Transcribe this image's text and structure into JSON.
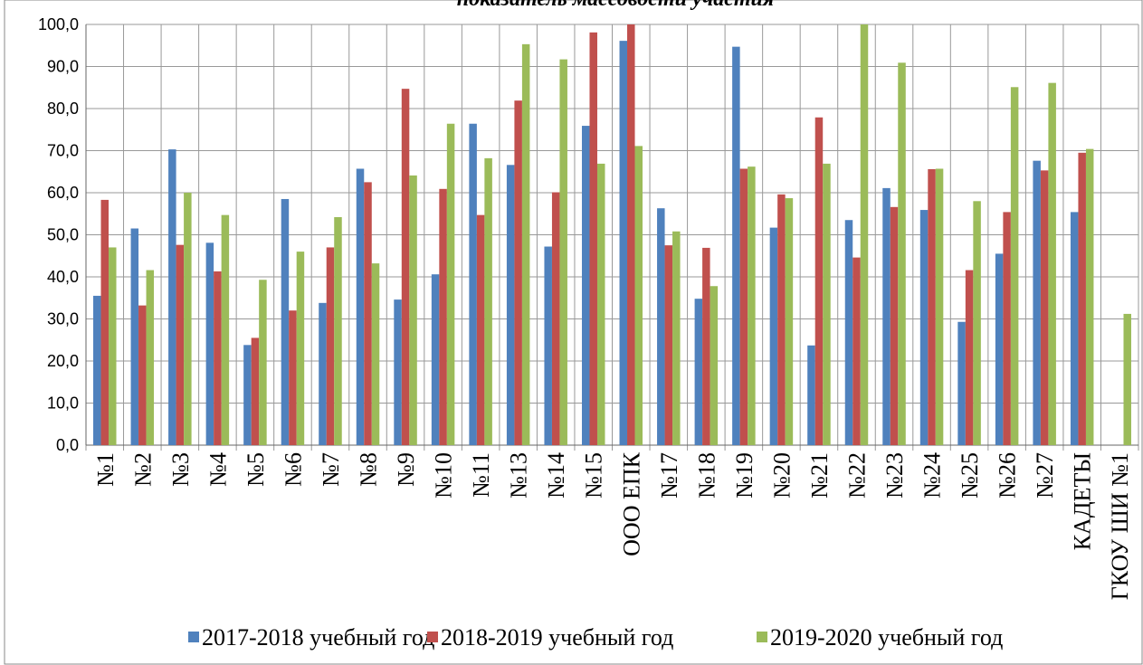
{
  "chart_data": {
    "type": "bar",
    "title": "показатель массовости участия",
    "categories": [
      "№1",
      "№2",
      "№3",
      "№4",
      "№5",
      "№6",
      "№7",
      "№8",
      "№9",
      "№10",
      "№11",
      "№13",
      "№14",
      "№15",
      "ООО ЕПК",
      "№17",
      "№18",
      "№19",
      "№20",
      "№21",
      "№22",
      "№23",
      "№24",
      "№25",
      "№26",
      "№27",
      "КАДЕТЫ",
      "ГКОУ ШИ №1"
    ],
    "series": [
      {
        "name": "2017-2018 учебный год",
        "color": "#4f81bd",
        "values": [
          35.5,
          51.5,
          70.3,
          48.1,
          23.8,
          58.5,
          33.8,
          65.7,
          34.6,
          40.6,
          76.4,
          66.6,
          47.2,
          75.9,
          96.1,
          56.3,
          34.8,
          94.7,
          51.7,
          23.7,
          53.5,
          61.1,
          55.9,
          29.3,
          45.5,
          67.6,
          55.4,
          null
        ]
      },
      {
        "name": "2018-2019 учебный год",
        "color": "#c0504d",
        "values": [
          58.3,
          33.2,
          47.6,
          41.3,
          25.5,
          32.0,
          47.0,
          62.5,
          84.7,
          60.9,
          54.7,
          81.9,
          60.1,
          98.1,
          100.0,
          47.5,
          46.9,
          65.7,
          59.6,
          77.9,
          44.6,
          56.6,
          65.6,
          41.6,
          55.4,
          65.3,
          69.5,
          null
        ]
      },
      {
        "name": "2019-2020 учебный год",
        "color": "#9bbb59",
        "values": [
          47.0,
          41.6,
          60.0,
          54.7,
          39.3,
          46.0,
          54.2,
          43.2,
          64.1,
          76.4,
          68.2,
          95.3,
          91.7,
          66.9,
          71.1,
          50.8,
          37.8,
          66.2,
          58.7,
          66.9,
          100.0,
          90.9,
          65.7,
          58.0,
          85.1,
          86.1,
          70.4,
          31.2
        ]
      }
    ],
    "ylim": [
      0,
      100
    ],
    "yticks": [
      {
        "value": 0,
        "label": "0,0"
      },
      {
        "value": 10,
        "label": "10,0"
      },
      {
        "value": 20,
        "label": "20,0"
      },
      {
        "value": 30,
        "label": "30,0"
      },
      {
        "value": 40,
        "label": "40,0"
      },
      {
        "value": 50,
        "label": "50,0"
      },
      {
        "value": 60,
        "label": "60,0"
      },
      {
        "value": 70,
        "label": "70,0"
      },
      {
        "value": 80,
        "label": "80,0"
      },
      {
        "value": 90,
        "label": "90,0"
      },
      {
        "value": 100,
        "label": "100,0"
      }
    ],
    "grid": true,
    "legend": "bottom"
  }
}
